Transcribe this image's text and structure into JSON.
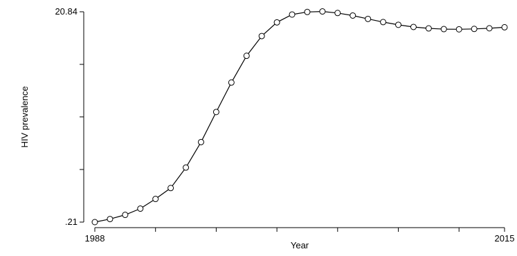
{
  "chart_data": {
    "type": "line",
    "xlabel": "Year",
    "ylabel": "HIV prevalence",
    "xlim": [
      1988,
      2015
    ],
    "ylim": [
      0.21,
      20.84
    ],
    "x_tick_values": [
      1988,
      1992,
      1996,
      2000,
      2004,
      2008,
      2012,
      2015
    ],
    "x_tick_labels": [
      "1988",
      "",
      "",
      "",
      "",
      "",
      "",
      "2015"
    ],
    "y_tick_values": [
      0.21,
      5.37,
      10.53,
      15.68,
      20.84
    ],
    "y_tick_labels": [
      ".21",
      "",
      "",
      "",
      "20.84"
    ],
    "marker": "hollow-circle",
    "series": [
      {
        "x": [
          1988,
          1989,
          1990,
          1991,
          1992,
          1993,
          1994,
          1995,
          1996,
          1997,
          1998,
          1999,
          2000,
          2001,
          2002,
          2003,
          2004,
          2005,
          2006,
          2007,
          2008,
          2009,
          2010,
          2011,
          2012,
          2013,
          2014,
          2015
        ],
        "values": [
          0.21,
          0.51,
          0.92,
          1.53,
          2.48,
          3.55,
          5.56,
          8.06,
          11.01,
          13.9,
          16.52,
          18.46,
          19.8,
          20.57,
          20.82,
          20.87,
          20.72,
          20.47,
          20.14,
          19.83,
          19.56,
          19.35,
          19.21,
          19.14,
          19.12,
          19.16,
          19.22,
          19.32
        ]
      }
    ]
  }
}
